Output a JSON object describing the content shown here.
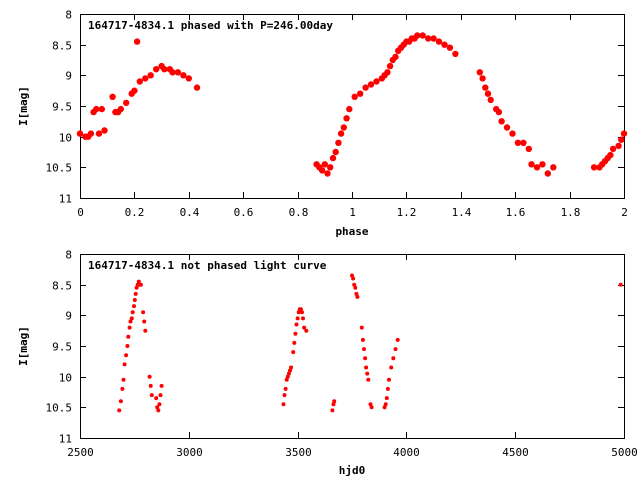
{
  "chart_data": [
    {
      "type": "scatter",
      "title": "164717-4834.1 phased with P=246.00day",
      "xlabel": "phase",
      "ylabel": "I[mag]",
      "xlim": [
        0,
        2
      ],
      "ylim": [
        8,
        11
      ],
      "y_inverted": true,
      "grid": false,
      "marker": "filled-circle",
      "color": "#ff0000",
      "xticks": [
        "0",
        "0.2",
        "0.4",
        "0.6",
        "0.8",
        "1",
        "1.2",
        "1.4",
        "1.6",
        "1.8",
        "2"
      ],
      "yticks": [
        "8",
        "8.5",
        "9",
        "9.5",
        "10",
        "10.5",
        "11"
      ],
      "x": [
        0.0,
        0.02,
        0.03,
        0.04,
        0.05,
        0.06,
        0.07,
        0.08,
        0.09,
        0.12,
        0.13,
        0.14,
        0.15,
        0.17,
        0.19,
        0.2,
        0.21,
        0.22,
        0.24,
        0.26,
        0.28,
        0.3,
        0.31,
        0.33,
        0.34,
        0.36,
        0.38,
        0.4,
        0.43,
        0.87,
        0.88,
        0.89,
        0.9,
        0.91,
        0.92,
        0.93,
        0.94,
        0.95,
        0.96,
        0.97,
        0.98,
        0.99,
        1.01,
        1.03,
        1.05,
        1.07,
        1.09,
        1.11,
        1.12,
        1.13,
        1.14,
        1.15,
        1.16,
        1.17,
        1.18,
        1.19,
        1.2,
        1.21,
        1.22,
        1.23,
        1.24,
        1.26,
        1.28,
        1.3,
        1.32,
        1.34,
        1.36,
        1.38,
        1.47,
        1.48,
        1.49,
        1.5,
        1.51,
        1.53,
        1.54,
        1.55,
        1.57,
        1.59,
        1.61,
        1.63,
        1.65,
        1.66,
        1.68,
        1.7,
        1.72,
        1.74,
        1.89,
        1.91,
        1.92,
        1.93,
        1.94,
        1.95,
        1.96,
        1.98,
        1.99,
        2.0
      ],
      "y": [
        9.95,
        10.0,
        10.0,
        9.95,
        9.6,
        9.55,
        9.95,
        9.55,
        9.9,
        9.35,
        9.6,
        9.6,
        9.55,
        9.45,
        9.3,
        9.25,
        8.45,
        9.1,
        9.05,
        9.0,
        8.9,
        8.85,
        8.9,
        8.9,
        8.95,
        8.95,
        9.0,
        9.05,
        9.2,
        10.45,
        10.5,
        10.55,
        10.45,
        10.6,
        10.5,
        10.35,
        10.25,
        10.1,
        9.95,
        9.85,
        9.7,
        9.55,
        9.35,
        9.3,
        9.2,
        9.15,
        9.1,
        9.05,
        9.0,
        8.95,
        8.85,
        8.75,
        8.7,
        8.6,
        8.55,
        8.5,
        8.45,
        8.45,
        8.4,
        8.4,
        8.35,
        8.35,
        8.4,
        8.4,
        8.45,
        8.5,
        8.55,
        8.65,
        8.95,
        9.05,
        9.2,
        9.3,
        9.4,
        9.55,
        9.6,
        9.75,
        9.85,
        9.95,
        10.1,
        10.1,
        10.2,
        10.45,
        10.5,
        10.45,
        10.6,
        10.5,
        10.5,
        10.5,
        10.45,
        10.4,
        10.35,
        10.3,
        10.2,
        10.15,
        10.05,
        9.95
      ]
    },
    {
      "type": "scatter",
      "title": "164717-4834.1 not phased light curve",
      "xlabel": "hjd0",
      "ylabel": "I[mag]",
      "xlim": [
        2500,
        5000
      ],
      "ylim": [
        8,
        11
      ],
      "y_inverted": true,
      "grid": false,
      "marker": "small-filled-circle",
      "color": "#ff0000",
      "xticks": [
        "2500",
        "3000",
        "3500",
        "4000",
        "4500",
        "5000"
      ],
      "yticks": [
        "8",
        "8.5",
        "9",
        "9.5",
        "10",
        "10.5",
        "11"
      ],
      "x": [
        2680,
        2688,
        2695,
        2700,
        2705,
        2712,
        2718,
        2722,
        2728,
        2732,
        2738,
        2742,
        2748,
        2752,
        2756,
        2760,
        2765,
        2770,
        2775,
        2780,
        2790,
        2795,
        2800,
        2820,
        2825,
        2830,
        2850,
        2855,
        2860,
        2865,
        2870,
        2875,
        3435,
        3440,
        3445,
        3450,
        3455,
        3460,
        3465,
        3470,
        3480,
        3485,
        3490,
        3495,
        3500,
        3505,
        3510,
        3515,
        3520,
        3525,
        3530,
        3540,
        3660,
        3665,
        3668,
        3750,
        3755,
        3760,
        3765,
        3770,
        3775,
        3795,
        3800,
        3805,
        3810,
        3815,
        3820,
        3825,
        3835,
        3840,
        3900,
        3905,
        3910,
        3915,
        3920,
        3930,
        3940,
        3950,
        3960,
        4985
      ],
      "y": [
        10.55,
        10.4,
        10.2,
        10.05,
        9.8,
        9.65,
        9.5,
        9.35,
        9.2,
        9.1,
        9.05,
        8.95,
        8.85,
        8.75,
        8.65,
        8.55,
        8.5,
        8.45,
        8.5,
        8.5,
        8.95,
        9.1,
        9.25,
        10.0,
        10.15,
        10.3,
        10.35,
        10.5,
        10.55,
        10.45,
        10.3,
        10.15,
        10.45,
        10.3,
        10.2,
        10.05,
        10.0,
        9.95,
        9.9,
        9.85,
        9.6,
        9.45,
        9.3,
        9.15,
        9.05,
        8.95,
        8.9,
        8.9,
        8.95,
        9.05,
        9.2,
        9.25,
        10.55,
        10.45,
        10.4,
        8.35,
        8.4,
        8.5,
        8.55,
        8.65,
        8.7,
        9.2,
        9.4,
        9.55,
        9.7,
        9.85,
        9.95,
        10.05,
        10.45,
        10.5,
        10.5,
        10.45,
        10.35,
        10.2,
        10.05,
        9.85,
        9.7,
        9.55,
        9.4,
        8.5
      ]
    }
  ]
}
